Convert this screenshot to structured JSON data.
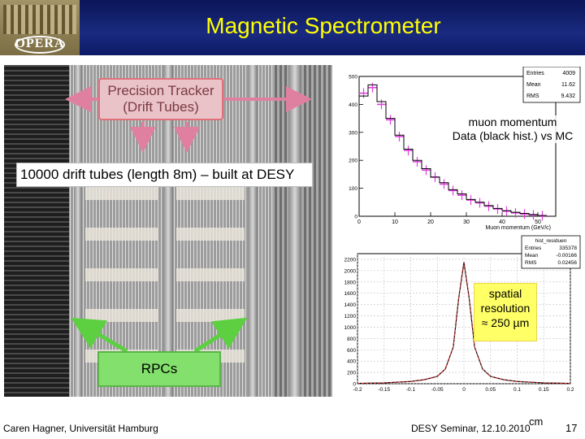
{
  "header": {
    "title": "Magnetic Spectrometer",
    "logo_text": "OPERA"
  },
  "photo": {
    "tracker_label_line1": "Precision Tracker",
    "tracker_label_line2": "(Drift Tubes)",
    "drift_tubes_caption": "10000 drift tubes (length 8m) – built at DESY",
    "rpc_label": "RPCs"
  },
  "momentum_plot": {
    "caption_line1": "muon momentum",
    "caption_line2": "Data (black hist.) vs MC",
    "stats": {
      "entries_label": "Entries",
      "entries_value": "4009",
      "mean_label": "Mean",
      "mean_value": "11.62",
      "rms_label": "RMS",
      "rms_value": "9.432"
    },
    "xlabel": "Muon momentum (GeV/c)"
  },
  "residual_plot": {
    "stats": {
      "title": "hist_residuen",
      "entries_label": "Entries",
      "entries_value": "335378",
      "mean_label": "Mean",
      "mean_value": "-0.00166",
      "rms_label": "RMS",
      "rms_value": "0.02456"
    },
    "caption_line1": "spatial",
    "caption_line2": "resolution",
    "caption_line3": "≈ 250 µm"
  },
  "footer": {
    "author": "Caren Hagner, Universität Hamburg",
    "event": "DESY Seminar, 12.10.2010",
    "unit": "cm",
    "page_number": "17"
  },
  "chart_data": [
    {
      "type": "line",
      "x": [
        0,
        2.5,
        5,
        7.5,
        10,
        12.5,
        15,
        17.5,
        20,
        22.5,
        25,
        27.5,
        30,
        32.5,
        35,
        37.5,
        40,
        42.5,
        45,
        47.5,
        50
      ],
      "series": [
        {
          "values": [
            430,
            470,
            410,
            350,
            290,
            240,
            200,
            170,
            140,
            120,
            95,
            80,
            60,
            50,
            38,
            28,
            20,
            14,
            10,
            6,
            3
          ]
        },
        {
          "values": [
            440,
            460,
            400,
            345,
            285,
            235,
            195,
            165,
            140,
            115,
            92,
            75,
            58,
            48,
            36,
            26,
            18,
            12,
            8,
            5,
            2
          ]
        }
      ],
      "xlabel": "Muon momentum (GeV/c)",
      "xticks": [
        "0",
        "10",
        "20",
        "30",
        "40",
        "50"
      ],
      "yticks": [
        "0",
        "100",
        "200",
        "300",
        "400",
        "500"
      ],
      "xlim": [
        0,
        55
      ],
      "ylim": [
        0,
        500
      ]
    },
    {
      "type": "line",
      "x": [
        -0.2,
        -0.15,
        -0.1,
        -0.075,
        -0.05,
        -0.035,
        -0.02,
        -0.01,
        0,
        0.01,
        0.02,
        0.035,
        0.05,
        0.075,
        0.1,
        0.15,
        0.2
      ],
      "series": [
        {
          "values": [
            5,
            15,
            40,
            70,
            130,
            260,
            650,
            1500,
            2150,
            1500,
            650,
            260,
            130,
            70,
            40,
            15,
            5
          ]
        }
      ],
      "xticks": [
        "-0.2",
        "-0.15",
        "-0.1",
        "-0.05",
        "0",
        "0.05",
        "0.1",
        "0.15",
        "0.2"
      ],
      "yticks": [
        "0",
        "200",
        "400",
        "600",
        "800",
        "1000",
        "1200",
        "1400",
        "1600",
        "1800",
        "2000",
        "2200"
      ],
      "xlim": [
        -0.2,
        0.2
      ],
      "ylim": [
        0,
        2300
      ]
    }
  ]
}
